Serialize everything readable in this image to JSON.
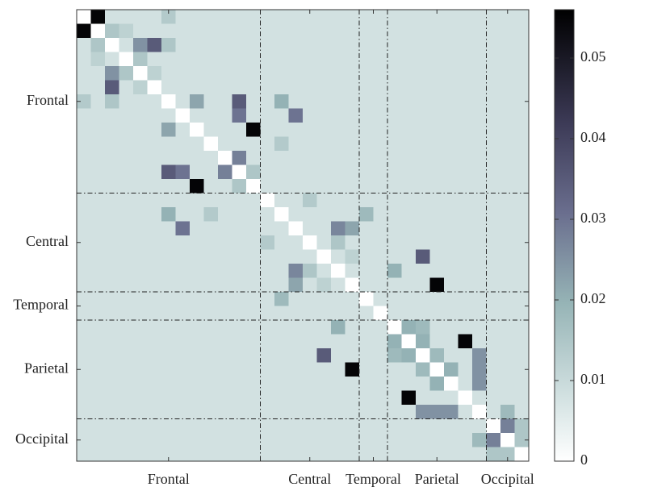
{
  "chart_data": {
    "type": "heatmap",
    "groups": [
      "Frontal",
      "Central",
      "Temporal",
      "Parietal",
      "Occipital"
    ],
    "group_sizes": [
      13,
      7,
      2,
      7,
      3
    ],
    "clim": [
      0,
      0.056
    ],
    "colorbar_ticks": [
      0,
      0.01,
      0.02,
      0.03,
      0.04,
      0.05
    ],
    "values": [
      [
        0,
        0.055,
        0.008,
        0.008,
        0.008,
        0.008,
        0.014,
        0.008,
        0.008,
        0.008,
        0.008,
        0.008,
        0.008,
        0.008,
        0.008,
        0.008,
        0.008,
        0.008,
        0.008,
        0.008,
        0.008,
        0.008,
        0.008,
        0.008,
        0.008,
        0.008,
        0.008,
        0.008,
        0.008,
        0.008,
        0.008,
        0.008
      ],
      [
        0.055,
        0,
        0.015,
        0.012,
        0.008,
        0.008,
        0.008,
        0.008,
        0.008,
        0.008,
        0.008,
        0.008,
        0.008,
        0.008,
        0.008,
        0.008,
        0.008,
        0.008,
        0.008,
        0.008,
        0.008,
        0.008,
        0.008,
        0.008,
        0.008,
        0.008,
        0.008,
        0.008,
        0.008,
        0.008,
        0.008,
        0.008
      ],
      [
        0.008,
        0.015,
        0,
        0.008,
        0.025,
        0.035,
        0.015,
        0.008,
        0.008,
        0.008,
        0.008,
        0.008,
        0.008,
        0.008,
        0.008,
        0.008,
        0.008,
        0.008,
        0.008,
        0.008,
        0.008,
        0.008,
        0.008,
        0.008,
        0.008,
        0.008,
        0.008,
        0.008,
        0.008,
        0.008,
        0.008,
        0.008
      ],
      [
        0.008,
        0.012,
        0.008,
        0,
        0.015,
        0.008,
        0.008,
        0.008,
        0.008,
        0.008,
        0.008,
        0.008,
        0.008,
        0.008,
        0.008,
        0.008,
        0.008,
        0.008,
        0.008,
        0.008,
        0.008,
        0.008,
        0.008,
        0.008,
        0.008,
        0.008,
        0.008,
        0.008,
        0.008,
        0.008,
        0.008,
        0.008
      ],
      [
        0.008,
        0.008,
        0.025,
        0.015,
        0,
        0.012,
        0.008,
        0.008,
        0.008,
        0.008,
        0.008,
        0.008,
        0.008,
        0.008,
        0.008,
        0.008,
        0.008,
        0.008,
        0.008,
        0.008,
        0.008,
        0.008,
        0.008,
        0.008,
        0.008,
        0.008,
        0.008,
        0.008,
        0.008,
        0.008,
        0.008,
        0.008
      ],
      [
        0.008,
        0.008,
        0.035,
        0.008,
        0.012,
        0,
        0.008,
        0.008,
        0.008,
        0.008,
        0.008,
        0.008,
        0.008,
        0.008,
        0.008,
        0.008,
        0.008,
        0.008,
        0.008,
        0.008,
        0.008,
        0.008,
        0.008,
        0.008,
        0.008,
        0.008,
        0.008,
        0.008,
        0.008,
        0.008,
        0.008,
        0.008
      ],
      [
        0.014,
        0.008,
        0.015,
        0.008,
        0.008,
        0.008,
        0,
        0.008,
        0.022,
        0.008,
        0.008,
        0.035,
        0.008,
        0.008,
        0.02,
        0.008,
        0.008,
        0.008,
        0.008,
        0.008,
        0.008,
        0.008,
        0.008,
        0.008,
        0.008,
        0.008,
        0.008,
        0.008,
        0.008,
        0.008,
        0.008,
        0.008
      ],
      [
        0.008,
        0.008,
        0.008,
        0.008,
        0.008,
        0.008,
        0.008,
        0,
        0.008,
        0.008,
        0.008,
        0.03,
        0.008,
        0.008,
        0.008,
        0.03,
        0.008,
        0.008,
        0.008,
        0.008,
        0.008,
        0.008,
        0.008,
        0.008,
        0.008,
        0.008,
        0.008,
        0.008,
        0.008,
        0.008,
        0.008,
        0.008
      ],
      [
        0.008,
        0.008,
        0.008,
        0.008,
        0.008,
        0.008,
        0.022,
        0.008,
        0,
        0.008,
        0.008,
        0.008,
        0.055,
        0.008,
        0.008,
        0.008,
        0.008,
        0.008,
        0.008,
        0.008,
        0.008,
        0.008,
        0.008,
        0.008,
        0.008,
        0.008,
        0.008,
        0.008,
        0.008,
        0.008,
        0.008,
        0.008
      ],
      [
        0.008,
        0.008,
        0.008,
        0.008,
        0.008,
        0.008,
        0.008,
        0.008,
        0.008,
        0,
        0.008,
        0.008,
        0.008,
        0.008,
        0.014,
        0.008,
        0.008,
        0.008,
        0.008,
        0.008,
        0.008,
        0.008,
        0.008,
        0.008,
        0.008,
        0.008,
        0.008,
        0.008,
        0.008,
        0.008,
        0.008,
        0.008
      ],
      [
        0.008,
        0.008,
        0.008,
        0.008,
        0.008,
        0.008,
        0.008,
        0.008,
        0.008,
        0.008,
        0,
        0.028,
        0.008,
        0.008,
        0.008,
        0.008,
        0.008,
        0.008,
        0.008,
        0.008,
        0.008,
        0.008,
        0.008,
        0.008,
        0.008,
        0.008,
        0.008,
        0.008,
        0.008,
        0.008,
        0.008,
        0.008
      ],
      [
        0.008,
        0.008,
        0.008,
        0.008,
        0.008,
        0.008,
        0.035,
        0.03,
        0.008,
        0.008,
        0.028,
        0,
        0.015,
        0.008,
        0.008,
        0.008,
        0.008,
        0.008,
        0.008,
        0.008,
        0.008,
        0.008,
        0.008,
        0.008,
        0.008,
        0.008,
        0.008,
        0.008,
        0.008,
        0.008,
        0.008,
        0.008
      ],
      [
        0.008,
        0.008,
        0.008,
        0.008,
        0.008,
        0.008,
        0.008,
        0.008,
        0.055,
        0.008,
        0.008,
        0.015,
        0,
        0.008,
        0.008,
        0.008,
        0.008,
        0.008,
        0.008,
        0.008,
        0.008,
        0.008,
        0.008,
        0.008,
        0.008,
        0.008,
        0.008,
        0.008,
        0.008,
        0.008,
        0.008,
        0.008
      ],
      [
        0.008,
        0.008,
        0.008,
        0.008,
        0.008,
        0.008,
        0.008,
        0.008,
        0.008,
        0.008,
        0.008,
        0.008,
        0.008,
        0,
        0.008,
        0.008,
        0.014,
        0.008,
        0.008,
        0.008,
        0.008,
        0.008,
        0.008,
        0.008,
        0.008,
        0.008,
        0.008,
        0.008,
        0.008,
        0.008,
        0.008,
        0.008
      ],
      [
        0.008,
        0.008,
        0.008,
        0.008,
        0.008,
        0.008,
        0.02,
        0.008,
        0.008,
        0.014,
        0.008,
        0.008,
        0.008,
        0.008,
        0,
        0.008,
        0.008,
        0.008,
        0.008,
        0.008,
        0.018,
        0.008,
        0.008,
        0.008,
        0.008,
        0.008,
        0.008,
        0.008,
        0.008,
        0.008,
        0.008,
        0.008
      ],
      [
        0.008,
        0.008,
        0.008,
        0.008,
        0.008,
        0.008,
        0.008,
        0.03,
        0.008,
        0.008,
        0.008,
        0.008,
        0.008,
        0.008,
        0.008,
        0,
        0.008,
        0.008,
        0.027,
        0.022,
        0.008,
        0.008,
        0.008,
        0.008,
        0.008,
        0.008,
        0.008,
        0.008,
        0.008,
        0.008,
        0.008,
        0.008
      ],
      [
        0.008,
        0.008,
        0.008,
        0.008,
        0.008,
        0.008,
        0.008,
        0.008,
        0.008,
        0.008,
        0.008,
        0.008,
        0.008,
        0.014,
        0.008,
        0.008,
        0,
        0.008,
        0.015,
        0.008,
        0.008,
        0.008,
        0.008,
        0.008,
        0.008,
        0.008,
        0.008,
        0.008,
        0.008,
        0.008,
        0.008,
        0.008
      ],
      [
        0.008,
        0.008,
        0.008,
        0.008,
        0.008,
        0.008,
        0.008,
        0.008,
        0.008,
        0.008,
        0.008,
        0.008,
        0.008,
        0.008,
        0.008,
        0.008,
        0.008,
        0,
        0.008,
        0.012,
        0.008,
        0.008,
        0.008,
        0.008,
        0.035,
        0.008,
        0.008,
        0.008,
        0.008,
        0.008,
        0.008,
        0.008
      ],
      [
        0.008,
        0.008,
        0.008,
        0.008,
        0.008,
        0.008,
        0.008,
        0.008,
        0.008,
        0.008,
        0.008,
        0.008,
        0.008,
        0.008,
        0.008,
        0.027,
        0.015,
        0.008,
        0,
        0.008,
        0.008,
        0.008,
        0.02,
        0.008,
        0.008,
        0.008,
        0.008,
        0.008,
        0.008,
        0.008,
        0.008,
        0.008
      ],
      [
        0.008,
        0.008,
        0.008,
        0.008,
        0.008,
        0.008,
        0.008,
        0.008,
        0.008,
        0.008,
        0.008,
        0.008,
        0.008,
        0.008,
        0.008,
        0.022,
        0.008,
        0.012,
        0.008,
        0,
        0.008,
        0.008,
        0.008,
        0.008,
        0.008,
        0.055,
        0.008,
        0.008,
        0.008,
        0.008,
        0.008,
        0.008
      ],
      [
        0.008,
        0.008,
        0.008,
        0.008,
        0.008,
        0.008,
        0.008,
        0.008,
        0.008,
        0.008,
        0.008,
        0.008,
        0.008,
        0.008,
        0.018,
        0.008,
        0.008,
        0.008,
        0.008,
        0.008,
        0,
        0.008,
        0.008,
        0.008,
        0.008,
        0.008,
        0.008,
        0.008,
        0.008,
        0.008,
        0.008,
        0.008
      ],
      [
        0.008,
        0.008,
        0.008,
        0.008,
        0.008,
        0.008,
        0.008,
        0.008,
        0.008,
        0.008,
        0.008,
        0.008,
        0.008,
        0.008,
        0.008,
        0.008,
        0.008,
        0.008,
        0.008,
        0.008,
        0.008,
        0,
        0.008,
        0.008,
        0.008,
        0.008,
        0.008,
        0.008,
        0.008,
        0.008,
        0.008,
        0.008
      ],
      [
        0.008,
        0.008,
        0.008,
        0.008,
        0.008,
        0.008,
        0.008,
        0.008,
        0.008,
        0.008,
        0.008,
        0.008,
        0.008,
        0.008,
        0.008,
        0.008,
        0.008,
        0.008,
        0.02,
        0.008,
        0.008,
        0.008,
        0,
        0.02,
        0.018,
        0.008,
        0.008,
        0.008,
        0.008,
        0.008,
        0.008,
        0.008
      ],
      [
        0.008,
        0.008,
        0.008,
        0.008,
        0.008,
        0.008,
        0.008,
        0.008,
        0.008,
        0.008,
        0.008,
        0.008,
        0.008,
        0.008,
        0.008,
        0.008,
        0.008,
        0.008,
        0.008,
        0.008,
        0.008,
        0.008,
        0.02,
        0,
        0.02,
        0.008,
        0.008,
        0.055,
        0.008,
        0.008,
        0.008,
        0.008
      ],
      [
        0.008,
        0.008,
        0.008,
        0.008,
        0.008,
        0.008,
        0.008,
        0.008,
        0.008,
        0.008,
        0.008,
        0.008,
        0.008,
        0.008,
        0.008,
        0.008,
        0.008,
        0.035,
        0.008,
        0.008,
        0.008,
        0.008,
        0.018,
        0.02,
        0,
        0.018,
        0.008,
        0.008,
        0.025,
        0.008,
        0.008,
        0.008
      ],
      [
        0.008,
        0.008,
        0.008,
        0.008,
        0.008,
        0.008,
        0.008,
        0.008,
        0.008,
        0.008,
        0.008,
        0.008,
        0.008,
        0.008,
        0.008,
        0.008,
        0.008,
        0.008,
        0.008,
        0.055,
        0.008,
        0.008,
        0.008,
        0.008,
        0.018,
        0,
        0.02,
        0.008,
        0.025,
        0.008,
        0.008,
        0.008
      ],
      [
        0.008,
        0.008,
        0.008,
        0.008,
        0.008,
        0.008,
        0.008,
        0.008,
        0.008,
        0.008,
        0.008,
        0.008,
        0.008,
        0.008,
        0.008,
        0.008,
        0.008,
        0.008,
        0.008,
        0.008,
        0.008,
        0.008,
        0.008,
        0.008,
        0.008,
        0.02,
        0,
        0.008,
        0.025,
        0.008,
        0.008,
        0.008
      ],
      [
        0.008,
        0.008,
        0.008,
        0.008,
        0.008,
        0.008,
        0.008,
        0.008,
        0.008,
        0.008,
        0.008,
        0.008,
        0.008,
        0.008,
        0.008,
        0.008,
        0.008,
        0.008,
        0.008,
        0.008,
        0.008,
        0.008,
        0.008,
        0.055,
        0.008,
        0.008,
        0.008,
        0,
        0.008,
        0.008,
        0.008,
        0.008
      ],
      [
        0.008,
        0.008,
        0.008,
        0.008,
        0.008,
        0.008,
        0.008,
        0.008,
        0.008,
        0.008,
        0.008,
        0.008,
        0.008,
        0.008,
        0.008,
        0.008,
        0.008,
        0.008,
        0.008,
        0.008,
        0.008,
        0.008,
        0.008,
        0.008,
        0.025,
        0.025,
        0.025,
        0.008,
        0,
        0.008,
        0.018,
        0.008
      ],
      [
        0.008,
        0.008,
        0.008,
        0.008,
        0.008,
        0.008,
        0.008,
        0.008,
        0.008,
        0.008,
        0.008,
        0.008,
        0.008,
        0.008,
        0.008,
        0.008,
        0.008,
        0.008,
        0.008,
        0.008,
        0.008,
        0.008,
        0.008,
        0.008,
        0.008,
        0.008,
        0.008,
        0.008,
        0.008,
        0,
        0.028,
        0.015
      ],
      [
        0.008,
        0.008,
        0.008,
        0.008,
        0.008,
        0.008,
        0.008,
        0.008,
        0.008,
        0.008,
        0.008,
        0.008,
        0.008,
        0.008,
        0.008,
        0.008,
        0.008,
        0.008,
        0.008,
        0.008,
        0.008,
        0.008,
        0.008,
        0.008,
        0.008,
        0.008,
        0.008,
        0.008,
        0.018,
        0.028,
        0,
        0.015
      ],
      [
        0.008,
        0.008,
        0.008,
        0.008,
        0.008,
        0.008,
        0.008,
        0.008,
        0.008,
        0.008,
        0.008,
        0.008,
        0.008,
        0.008,
        0.008,
        0.008,
        0.008,
        0.008,
        0.008,
        0.008,
        0.008,
        0.008,
        0.008,
        0.008,
        0.008,
        0.008,
        0.008,
        0.008,
        0.008,
        0.015,
        0.015,
        0
      ]
    ]
  }
}
